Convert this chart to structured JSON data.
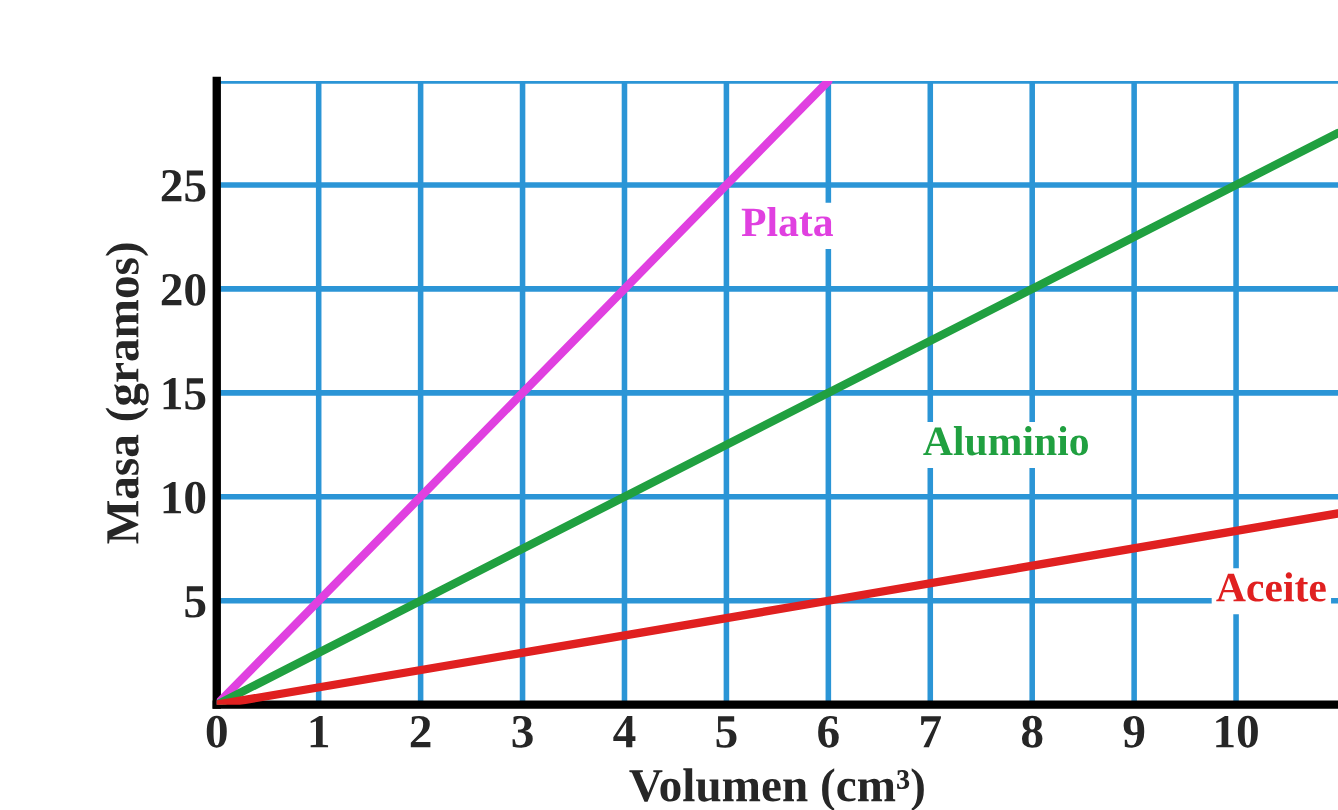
{
  "chart_data": {
    "type": "line",
    "xlabel": "Volumen (cm³)",
    "ylabel": "Masa (gramos)",
    "xlim": [
      0,
      11
    ],
    "ylim": [
      0,
      30
    ],
    "xticks": [
      0,
      1,
      2,
      3,
      4,
      5,
      6,
      7,
      8,
      9,
      10
    ],
    "yticks": [
      5,
      10,
      15,
      20,
      25,
      {
        "value": 30,
        "label": null
      }
    ],
    "grid": true,
    "legend": false,
    "series": [
      {
        "name": "Plata",
        "x": [
          0,
          6
        ],
        "values": [
          0,
          30
        ],
        "color": "#e040e0"
      },
      {
        "name": "Aluminio",
        "x": [
          0,
          11
        ],
        "values": [
          0,
          27.5
        ],
        "color": "#20a040"
      },
      {
        "name": "Aceite",
        "x": [
          0,
          6,
          11
        ],
        "values": [
          0,
          5,
          9.2
        ],
        "color": "#e02020"
      }
    ]
  }
}
